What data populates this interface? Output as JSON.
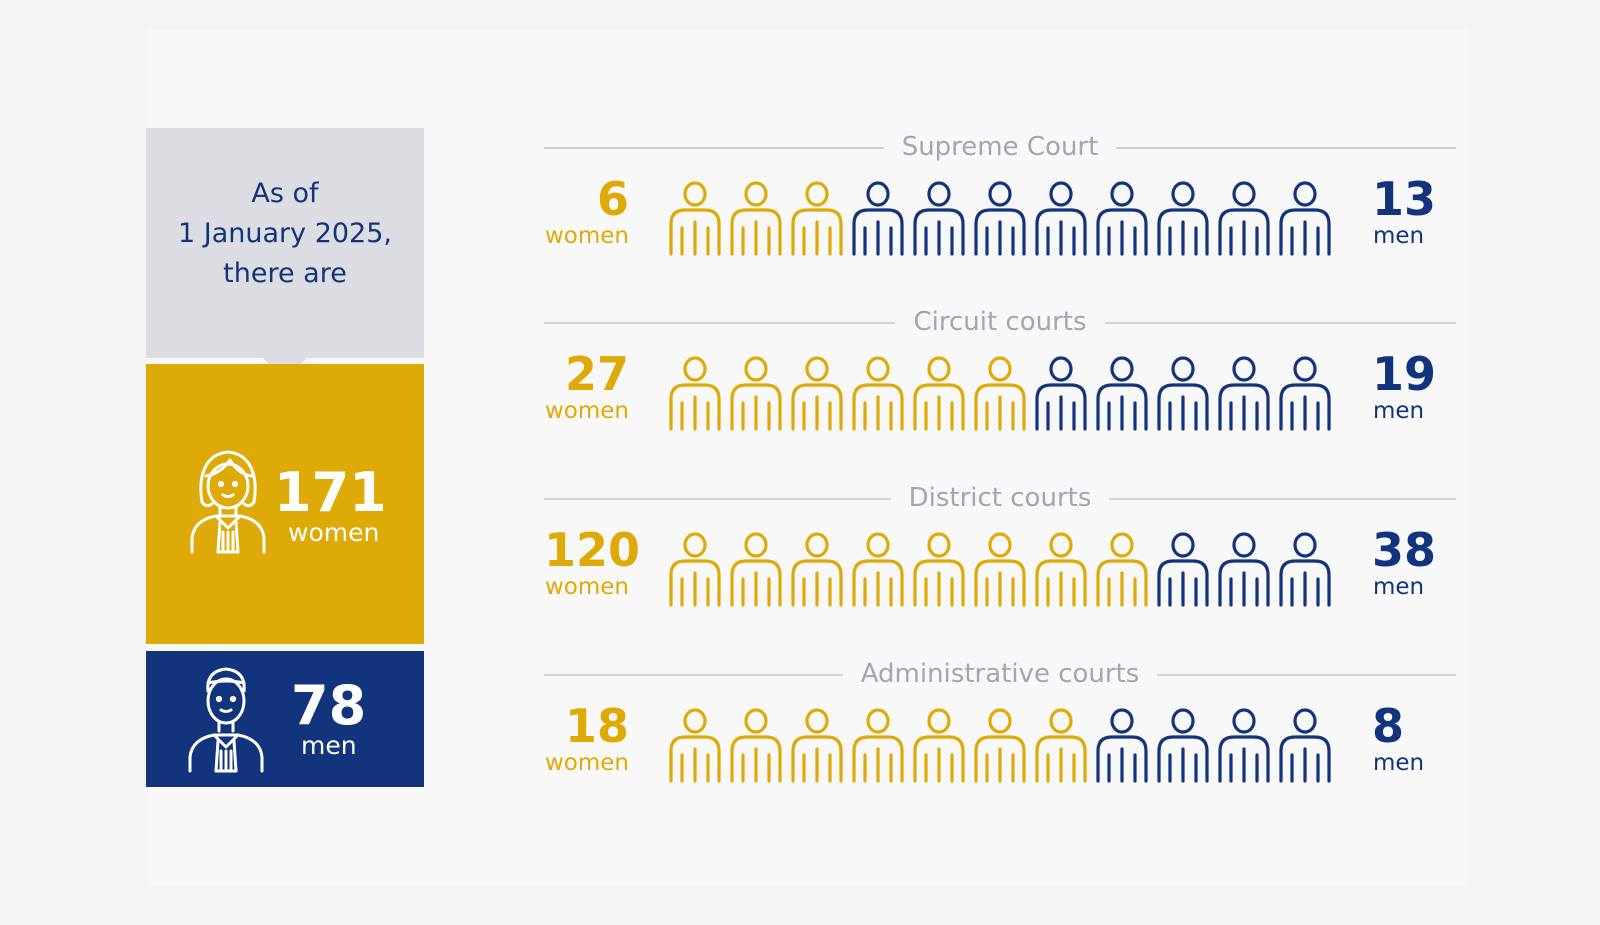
{
  "summary": {
    "as_of_text": "As of\n1 January 2025,\nthere are",
    "women_total": "171",
    "women_label": "women",
    "men_total": "78",
    "men_label": "men"
  },
  "colors": {
    "women": "#deaa07",
    "men": "#12347c",
    "divider": "#cfd1d6",
    "title": "#a3a6b0"
  },
  "chart_data": {
    "type": "pictogram",
    "figures_per_row": 11,
    "categories": [
      "Supreme Court",
      "Circuit courts",
      "District courts",
      "Administrative courts"
    ],
    "series": [
      {
        "name": "women",
        "values": [
          6,
          27,
          120,
          18
        ]
      },
      {
        "name": "men",
        "values": [
          13,
          19,
          38,
          8
        ]
      }
    ],
    "rows": [
      {
        "title": "Supreme Court",
        "women": "6",
        "women_label": "women",
        "men": "13",
        "men_label": "men",
        "women_icons": 3,
        "men_icons": 8
      },
      {
        "title": "Circuit courts",
        "women": "27",
        "women_label": "women",
        "men": "19",
        "men_label": "men",
        "women_icons": 6,
        "men_icons": 5
      },
      {
        "title": "District courts",
        "women": "120",
        "women_label": "women",
        "men": "38",
        "men_label": "men",
        "women_icons": 8,
        "men_icons": 3
      },
      {
        "title": "Administrative courts",
        "women": "18",
        "women_label": "women",
        "men": "8",
        "men_label": "men",
        "women_icons": 7,
        "men_icons": 4
      }
    ]
  }
}
